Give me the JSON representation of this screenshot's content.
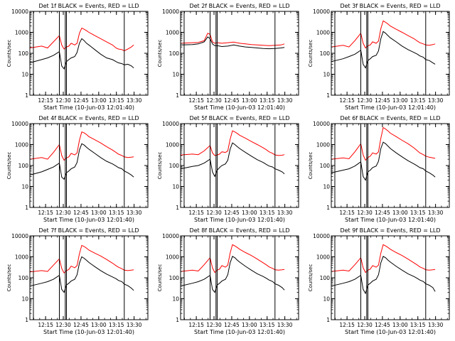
{
  "figure": {
    "background": "#ffffff",
    "axis_color": "#000000"
  },
  "chart_data": [
    {
      "type": "line",
      "panel": "det-1",
      "title": "Det 1f BLACK = Events, RED = LLD",
      "xlabel": "Start Time (10-Jun-03 12:01:40)",
      "ylabel": "Counts/sec",
      "xticks": [
        "12:15",
        "12:30",
        "12:45",
        "13:00",
        "13:15",
        "13:30"
      ],
      "yticks": [
        "1",
        "10",
        "100",
        "1000",
        "10000"
      ],
      "xlim_min": [
        0,
        100
      ],
      "ylim": [
        1,
        10000
      ],
      "yscale": "log",
      "x_min": [
        0,
        10,
        15,
        20,
        25,
        27,
        29,
        31,
        33,
        35,
        38,
        40,
        42,
        44,
        46,
        48,
        50,
        55,
        60,
        65,
        70,
        73,
        75,
        78,
        80,
        83,
        86,
        88
      ],
      "vlines_min": [
        3,
        25,
        30,
        31,
        80
      ],
      "series": [
        {
          "name": "RED = LLD",
          "color": "#ff0000",
          "values": [
            180,
            220,
            180,
            350,
            700,
            250,
            160,
            200,
            220,
            300,
            250,
            300,
            900,
            1600,
            1400,
            1200,
            1000,
            700,
            500,
            350,
            250,
            180,
            160,
            150,
            130,
            160,
            200,
            250
          ]
        },
        {
          "name": "BLACK = Events",
          "color": "#000000",
          "values": [
            35,
            50,
            60,
            80,
            120,
            25,
            18,
            40,
            50,
            60,
            70,
            110,
            300,
            500,
            400,
            300,
            250,
            150,
            90,
            60,
            50,
            40,
            35,
            32,
            28,
            30,
            25,
            20
          ]
        }
      ]
    },
    {
      "type": "line",
      "panel": "det-2",
      "title": "Det 2f BLACK = Events, RED = LLD",
      "xlabel": "Start Time (10-Jun-03 12:01:40)",
      "ylabel": "Counts/sec",
      "xticks": [
        "12:15",
        "12:30",
        "12:45",
        "13:00",
        "13:15",
        "13:30"
      ],
      "yticks": [
        "1",
        "10",
        "100",
        "1000",
        "10000"
      ],
      "xlim_min": [
        0,
        100
      ],
      "ylim": [
        1,
        10000
      ],
      "yscale": "log",
      "x_min": [
        0,
        10,
        15,
        20,
        23,
        25,
        27,
        29,
        31,
        33,
        35,
        40,
        45,
        50,
        55,
        60,
        65,
        70,
        75,
        80,
        85,
        88
      ],
      "vlines_min": [
        3,
        25,
        30,
        31,
        80
      ],
      "series": [
        {
          "name": "RED = LLD",
          "color": "#ff0000",
          "values": [
            300,
            320,
            330,
            400,
            900,
            800,
            350,
            300,
            320,
            310,
            300,
            320,
            340,
            300,
            280,
            260,
            250,
            240,
            230,
            240,
            250,
            280
          ]
        },
        {
          "name": "BLACK = Events",
          "color": "#000000",
          "values": [
            250,
            260,
            280,
            350,
            600,
            500,
            280,
            230,
            230,
            220,
            210,
            220,
            250,
            220,
            200,
            190,
            180,
            170,
            165,
            170,
            180,
            190
          ]
        }
      ]
    },
    {
      "type": "line",
      "panel": "det-3",
      "title": "Det 3f BLACK = Events, RED = LLD",
      "xlabel": "Start Time (10-Jun-03 12:01:40)",
      "ylabel": "Counts/sec",
      "xticks": [
        "12:15",
        "12:30",
        "12:45",
        "13:00",
        "13:15",
        "13:30"
      ],
      "yticks": [
        "1",
        "10",
        "100",
        "1000",
        "10000"
      ],
      "xlim_min": [
        0,
        100
      ],
      "ylim": [
        1,
        10000
      ],
      "yscale": "log",
      "x_min": [
        0,
        10,
        15,
        20,
        25,
        27,
        29,
        31,
        33,
        35,
        38,
        40,
        42,
        44,
        46,
        48,
        50,
        55,
        60,
        65,
        70,
        73,
        75,
        78,
        80,
        83,
        86,
        88
      ],
      "vlines_min": [
        3,
        25,
        30,
        31,
        80
      ],
      "series": [
        {
          "name": "RED = LLD",
          "color": "#ff0000",
          "values": [
            200,
            240,
            200,
            400,
            900,
            300,
            180,
            230,
            250,
            350,
            300,
            380,
            1500,
            3500,
            3000,
            2500,
            2000,
            1400,
            1000,
            700,
            500,
            380,
            320,
            280,
            250,
            240,
            260,
            280
          ]
        },
        {
          "name": "BLACK = Events",
          "color": "#000000",
          "values": [
            40,
            55,
            70,
            90,
            140,
            30,
            20,
            45,
            55,
            70,
            80,
            130,
            500,
            1100,
            900,
            700,
            550,
            350,
            220,
            150,
            110,
            90,
            75,
            65,
            50,
            45,
            35,
            30
          ]
        }
      ]
    },
    {
      "type": "line",
      "panel": "det-4",
      "title": "Det 4f BLACK = Events, RED = LLD",
      "xlabel": "Start Time (10-Jun-03 12:01:40)",
      "ylabel": "Counts/sec",
      "xticks": [
        "12:15",
        "12:30",
        "12:45",
        "13:00",
        "13:15",
        "13:30"
      ],
      "yticks": [
        "1",
        "10",
        "100",
        "1000",
        "10000"
      ],
      "xlim_min": [
        0,
        100
      ],
      "ylim": [
        1,
        10000
      ],
      "yscale": "log",
      "x_min": [
        0,
        10,
        15,
        20,
        25,
        27,
        29,
        31,
        33,
        35,
        38,
        40,
        42,
        44,
        46,
        48,
        50,
        55,
        60,
        65,
        70,
        73,
        75,
        78,
        80,
        83,
        86,
        88
      ],
      "vlines_min": [
        3,
        25,
        30,
        31,
        80
      ],
      "series": [
        {
          "name": "RED = LLD",
          "color": "#ff0000",
          "values": [
            200,
            240,
            200,
            420,
            1000,
            300,
            180,
            230,
            260,
            380,
            320,
            400,
            1600,
            4000,
            3600,
            3000,
            2400,
            1700,
            1200,
            800,
            550,
            420,
            350,
            300,
            260,
            240,
            250,
            260
          ]
        },
        {
          "name": "BLACK = Events",
          "color": "#000000",
          "values": [
            35,
            50,
            65,
            85,
            130,
            28,
            22,
            45,
            55,
            70,
            85,
            140,
            550,
            1100,
            950,
            750,
            600,
            380,
            240,
            160,
            120,
            95,
            80,
            70,
            55,
            45,
            35,
            28
          ]
        }
      ]
    },
    {
      "type": "line",
      "panel": "det-5",
      "title": "Det 5f BLACK = Events, RED = LLD",
      "xlabel": "Start Time (10-Jun-03 12:01:40)",
      "ylabel": "Counts/sec",
      "xticks": [
        "12:15",
        "12:30",
        "12:45",
        "13:00",
        "13:15",
        "13:30"
      ],
      "yticks": [
        "1",
        "10",
        "100",
        "1000",
        "10000"
      ],
      "xlim_min": [
        0,
        100
      ],
      "ylim": [
        1,
        10000
      ],
      "yscale": "log",
      "x_min": [
        0,
        10,
        15,
        20,
        25,
        27,
        29,
        31,
        33,
        35,
        38,
        40,
        42,
        44,
        46,
        48,
        50,
        55,
        60,
        65,
        70,
        73,
        75,
        78,
        80,
        83,
        86,
        88
      ],
      "vlines_min": [
        3,
        25,
        30,
        31,
        80
      ],
      "series": [
        {
          "name": "RED = LLD",
          "color": "#ff0000",
          "values": [
            320,
            350,
            330,
            500,
            900,
            400,
            300,
            320,
            350,
            450,
            420,
            500,
            1800,
            4500,
            4000,
            3400,
            2800,
            2000,
            1400,
            1000,
            700,
            550,
            450,
            380,
            320,
            300,
            310,
            330
          ]
        },
        {
          "name": "BLACK = Events",
          "color": "#000000",
          "values": [
            70,
            90,
            100,
            130,
            200,
            50,
            30,
            60,
            80,
            100,
            120,
            180,
            600,
            1200,
            1000,
            800,
            650,
            420,
            280,
            190,
            140,
            110,
            95,
            85,
            70,
            60,
            50,
            40
          ]
        }
      ]
    },
    {
      "type": "line",
      "panel": "det-6",
      "title": "Det 6f BLACK = Events, RED = LLD",
      "xlabel": "Start Time (10-Jun-03 12:01:40)",
      "ylabel": "Counts/sec",
      "xticks": [
        "12:15",
        "12:30",
        "12:45",
        "13:00",
        "13:15",
        "13:30"
      ],
      "yticks": [
        "1",
        "10",
        "100",
        "1000",
        "10000"
      ],
      "xlim_min": [
        0,
        100
      ],
      "ylim": [
        1,
        10000
      ],
      "yscale": "log",
      "x_min": [
        0,
        10,
        15,
        20,
        25,
        27,
        29,
        31,
        33,
        35,
        38,
        40,
        42,
        44,
        46,
        48,
        50,
        55,
        60,
        65,
        70,
        73,
        75,
        78,
        80,
        83,
        86,
        88
      ],
      "vlines_min": [
        3,
        25,
        30,
        31,
        80
      ],
      "series": [
        {
          "name": "RED = LLD",
          "color": "#ff0000",
          "values": [
            200,
            230,
            210,
            450,
            1100,
            320,
            180,
            240,
            280,
            400,
            350,
            450,
            2000,
            6500,
            5500,
            4500,
            3500,
            2400,
            1600,
            1100,
            700,
            500,
            400,
            330,
            280,
            250,
            230,
            220
          ]
        },
        {
          "name": "BLACK = Events",
          "color": "#000000",
          "values": [
            45,
            60,
            70,
            95,
            150,
            30,
            20,
            50,
            60,
            80,
            95,
            160,
            650,
            1300,
            1100,
            850,
            650,
            400,
            260,
            170,
            120,
            95,
            80,
            70,
            55,
            45,
            35,
            28
          ]
        }
      ]
    },
    {
      "type": "line",
      "panel": "det-7",
      "title": "Det 7f BLACK = Events, RED = LLD",
      "xlabel": "Start Time (10-Jun-03 12:01:40)",
      "ylabel": "Counts/sec",
      "xticks": [
        "12:15",
        "12:30",
        "12:45",
        "13:00",
        "13:15",
        "13:30"
      ],
      "yticks": [
        "1",
        "10",
        "100",
        "1000",
        "10000"
      ],
      "xlim_min": [
        0,
        100
      ],
      "ylim": [
        1,
        10000
      ],
      "yscale": "log",
      "x_min": [
        0,
        10,
        15,
        20,
        25,
        27,
        29,
        31,
        33,
        35,
        38,
        40,
        42,
        44,
        46,
        48,
        50,
        55,
        60,
        65,
        70,
        73,
        75,
        78,
        80,
        83,
        86,
        88
      ],
      "vlines_min": [
        3,
        25,
        30,
        31,
        80
      ],
      "series": [
        {
          "name": "RED = LLD",
          "color": "#ff0000",
          "values": [
            190,
            220,
            200,
            400,
            800,
            280,
            170,
            220,
            250,
            360,
            300,
            380,
            1400,
            3500,
            3100,
            2600,
            2100,
            1500,
            1100,
            750,
            500,
            380,
            320,
            270,
            230,
            220,
            230,
            240
          ]
        },
        {
          "name": "BLACK = Events",
          "color": "#000000",
          "values": [
            40,
            55,
            65,
            85,
            130,
            28,
            20,
            45,
            55,
            70,
            85,
            140,
            500,
            1000,
            850,
            680,
            540,
            340,
            220,
            150,
            110,
            90,
            75,
            65,
            50,
            42,
            32,
            25
          ]
        }
      ]
    },
    {
      "type": "line",
      "panel": "det-8",
      "title": "Det 8f BLACK = Events, RED = LLD",
      "xlabel": "Start Time (10-Jun-03 12:01:40)",
      "ylabel": "Counts/sec",
      "xticks": [
        "12:15",
        "12:30",
        "12:45",
        "13:00",
        "13:15",
        "13:30"
      ],
      "yticks": [
        "1",
        "10",
        "100",
        "1000",
        "10000"
      ],
      "xlim_min": [
        0,
        100
      ],
      "ylim": [
        1,
        10000
      ],
      "yscale": "log",
      "x_min": [
        0,
        10,
        15,
        20,
        25,
        27,
        29,
        31,
        33,
        35,
        38,
        40,
        42,
        44,
        46,
        48,
        50,
        55,
        60,
        65,
        70,
        73,
        75,
        78,
        80,
        83,
        86,
        88
      ],
      "vlines_min": [
        3,
        25,
        30,
        31,
        80
      ],
      "series": [
        {
          "name": "RED = LLD",
          "color": "#ff0000",
          "values": [
            200,
            230,
            210,
            420,
            900,
            300,
            180,
            230,
            260,
            380,
            320,
            400,
            1500,
            3800,
            3300,
            2800,
            2300,
            1600,
            1150,
            780,
            520,
            400,
            330,
            280,
            240,
            230,
            240,
            250
          ]
        },
        {
          "name": "BLACK = Events",
          "color": "#000000",
          "values": [
            40,
            55,
            65,
            85,
            130,
            28,
            20,
            45,
            55,
            70,
            85,
            140,
            520,
            1050,
            900,
            700,
            560,
            350,
            230,
            155,
            115,
            92,
            78,
            66,
            52,
            44,
            34,
            26
          ]
        }
      ]
    },
    {
      "type": "line",
      "panel": "det-9",
      "title": "Det 9f BLACK = Events, RED = LLD",
      "xlabel": "Start Time (10-Jun-03 12:01:40)",
      "ylabel": "Counts/sec",
      "xticks": [
        "12:15",
        "12:30",
        "12:45",
        "13:00",
        "13:15",
        "13:30"
      ],
      "yticks": [
        "1",
        "10",
        "100",
        "1000",
        "10000"
      ],
      "xlim_min": [
        0,
        100
      ],
      "ylim": [
        1,
        10000
      ],
      "yscale": "log",
      "x_min": [
        0,
        10,
        15,
        20,
        25,
        27,
        29,
        31,
        33,
        35,
        38,
        40,
        42,
        44,
        46,
        48,
        50,
        55,
        60,
        65,
        70,
        73,
        75,
        78,
        80,
        83,
        86,
        88
      ],
      "vlines_min": [
        3,
        25,
        30,
        31,
        80
      ],
      "series": [
        {
          "name": "RED = LLD",
          "color": "#ff0000",
          "values": [
            200,
            230,
            210,
            420,
            900,
            300,
            180,
            230,
            260,
            380,
            320,
            400,
            1500,
            3800,
            3300,
            2800,
            2300,
            1600,
            1150,
            780,
            520,
            400,
            330,
            280,
            240,
            230,
            240,
            250
          ]
        },
        {
          "name": "BLACK = Events",
          "color": "#000000",
          "values": [
            40,
            55,
            65,
            85,
            130,
            28,
            18,
            45,
            55,
            70,
            85,
            140,
            520,
            1050,
            900,
            700,
            560,
            350,
            230,
            155,
            115,
            92,
            78,
            66,
            52,
            44,
            34,
            22
          ]
        }
      ]
    }
  ]
}
